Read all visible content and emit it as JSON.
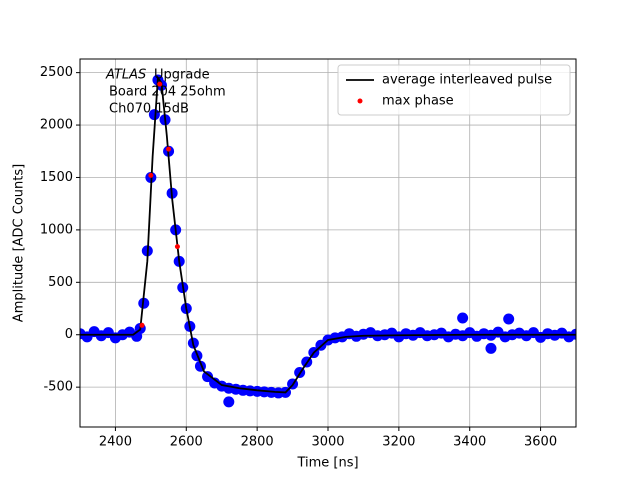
{
  "chart_data": {
    "type": "scatter",
    "xlabel": "Time [ns]",
    "ylabel": "Amplitude [ADC Counts]",
    "annotations": [
      "ATLAS",
      "Upgrade",
      "Board 204 25ohm",
      "Ch070 15dB"
    ],
    "xlim": [
      2300,
      3700
    ],
    "ylim": [
      -880,
      2630
    ],
    "xticks": [
      2400,
      2600,
      2800,
      3000,
      3200,
      3400,
      3600
    ],
    "yticks": [
      -500,
      0,
      500,
      1000,
      1500,
      2000,
      2500
    ],
    "grid": true,
    "legend": "upper right",
    "series": [
      {
        "color": "#0000ff",
        "kind": "scatter",
        "x": [
          2300,
          2320,
          2340,
          2360,
          2380,
          2400,
          2420,
          2440,
          2460,
          2470,
          2480,
          2490,
          2500,
          2510,
          2520,
          2530,
          2540,
          2550,
          2560,
          2570,
          2580,
          2590,
          2600,
          2610,
          2620,
          2630,
          2640,
          2660,
          2680,
          2700,
          2720,
          2740,
          2760,
          2780,
          2800,
          2820,
          2840,
          2860,
          2880,
          2900,
          2920,
          2940,
          2960,
          2980,
          3000,
          3020,
          3040,
          3060,
          3080,
          3100,
          3120,
          3140,
          3160,
          3180,
          3200,
          3220,
          3240,
          3260,
          3280,
          3300,
          3320,
          3340,
          3360,
          3380,
          3400,
          3420,
          3440,
          3460,
          3480,
          3500,
          3520,
          3540,
          3560,
          3580,
          3600,
          3620,
          3640,
          3660,
          3680,
          3700,
          3380,
          3510,
          2720,
          3460
        ],
        "values": [
          10,
          -20,
          30,
          -10,
          20,
          -30,
          0,
          25,
          -15,
          60,
          300,
          800,
          1500,
          2100,
          2430,
          2380,
          2050,
          1750,
          1350,
          1000,
          700,
          450,
          250,
          80,
          -80,
          -200,
          -300,
          -400,
          -460,
          -490,
          -510,
          -520,
          -530,
          -535,
          -540,
          -545,
          -550,
          -555,
          -550,
          -470,
          -360,
          -260,
          -170,
          -100,
          -50,
          -30,
          -20,
          10,
          -15,
          5,
          20,
          -10,
          0,
          15,
          -20,
          10,
          -5,
          20,
          -10,
          0,
          15,
          -20,
          5,
          -10,
          20,
          -15,
          10,
          -5,
          25,
          -20,
          0,
          15,
          -10,
          20,
          -25,
          10,
          -5,
          15,
          -20,
          5,
          160,
          150,
          -640,
          -130
        ]
      },
      {
        "name": "average interleaved pulse",
        "color": "#000000",
        "kind": "line",
        "x": [
          2300,
          2450,
          2470,
          2490,
          2505,
          2520,
          2530,
          2545,
          2560,
          2580,
          2600,
          2620,
          2650,
          2700,
          2750,
          2800,
          2850,
          2880,
          2900,
          2930,
          2960,
          3000,
          3050,
          3100,
          3200,
          3400,
          3700
        ],
        "values": [
          0,
          0,
          50,
          700,
          1700,
          2450,
          2400,
          1900,
          1300,
          700,
          250,
          -100,
          -350,
          -480,
          -510,
          -530,
          -545,
          -550,
          -480,
          -320,
          -170,
          -50,
          -20,
          -10,
          -5,
          0,
          0
        ]
      },
      {
        "name": "max phase",
        "color": "#ff0000",
        "kind": "scatter",
        "x": [
          2475,
          2500,
          2525,
          2550,
          2575
        ],
        "values": [
          90,
          1520,
          2390,
          1770,
          840
        ]
      }
    ]
  }
}
